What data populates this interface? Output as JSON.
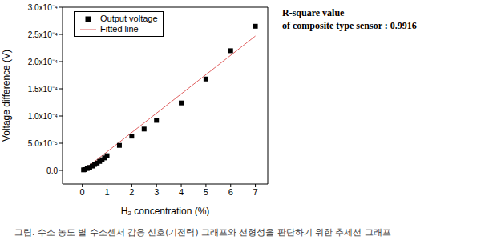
{
  "chart_data": {
    "type": "scatter",
    "x_label": "H₂ concentration (%)",
    "y_label": "Voltage difference (V)",
    "legend": "upper left",
    "series": [
      {
        "name": "Output voltage",
        "type": "scatter",
        "marker": "square",
        "color": "#000000",
        "x": [
          0.05,
          0.1,
          0.2,
          0.3,
          0.4,
          0.5,
          0.6,
          0.7,
          0.8,
          0.9,
          1.0,
          1.5,
          2,
          2.5,
          3,
          4,
          5,
          6,
          7
        ],
        "values": [
          1e-06,
          1.5e-06,
          3.5e-06,
          5.5e-06,
          8e-06,
          1.1e-05,
          1.35e-05,
          1.65e-05,
          1.95e-05,
          2.3e-05,
          2.7e-05,
          4.6e-05,
          6.3e-05,
          7.6e-05,
          9.2e-05,
          0.000124,
          0.000168,
          0.00022,
          0.000265
        ]
      },
      {
        "name": "Fitted line",
        "type": "line",
        "line_style": "solid",
        "color": "#e06060",
        "x": [
          0.05,
          7
        ],
        "values": [
          5e-07,
          0.000247
        ]
      }
    ],
    "xlim": [
      -0.8,
      7.5
    ],
    "xticks": [
      0,
      1,
      2,
      3,
      4,
      5,
      6,
      7
    ],
    "ylim": [
      -2.5e-05,
      0.0003
    ],
    "yticks": [
      {
        "value": 0,
        "label": "0.0"
      },
      {
        "value": 5e-05,
        "label": "5.0x10⁻⁵"
      },
      {
        "value": 0.0001,
        "label": "1.0x10⁻⁴"
      },
      {
        "value": 0.00015,
        "label": "1.5x10⁻⁴"
      },
      {
        "value": 0.0002,
        "label": "2.0x10⁻⁴"
      },
      {
        "value": 0.00025,
        "label": "2.5x10⁻⁴"
      },
      {
        "value": 0.0003,
        "label": "3.0x10⁻⁴"
      }
    ],
    "annotations": [
      "R-square value",
      "of composite type sensor : 0.9916"
    ],
    "caption": "그림. 수소 농도 별 수소센서 감응 신호(기전력) 그래프와 선형성을 판단하기 위한 추세선 그래프"
  }
}
